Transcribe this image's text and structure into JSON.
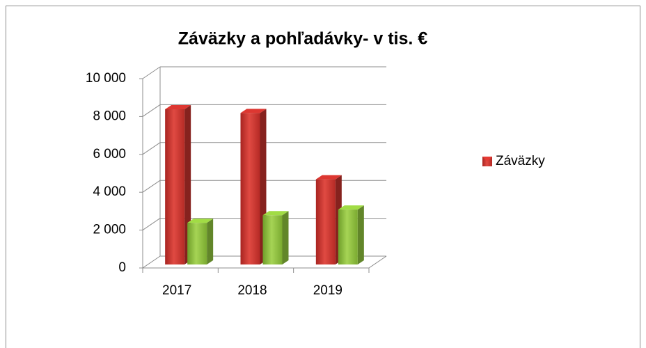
{
  "chart_data": {
    "type": "bar3d",
    "title": "Záväzky a pohľadávky- v tis. €",
    "categories": [
      "2017",
      "2018",
      "2019"
    ],
    "series": [
      {
        "name": "Záväzky",
        "color": "#c0302b",
        "values": [
          8200,
          8000,
          4500
        ]
      },
      {
        "color": "#8cbf3c",
        "values": [
          2200,
          2600,
          2900
        ]
      }
    ],
    "ylim": [
      0,
      10000
    ],
    "yticks": [
      0,
      {
        "value": 2000,
        "label": "2 000"
      },
      {
        "value": 4000,
        "label": "4 000"
      },
      {
        "value": 6000,
        "label": "6 000"
      },
      {
        "value": 8000,
        "label": "8 000"
      },
      {
        "value": 10000,
        "label": "10 000"
      }
    ],
    "grid": true,
    "legend": "right"
  }
}
